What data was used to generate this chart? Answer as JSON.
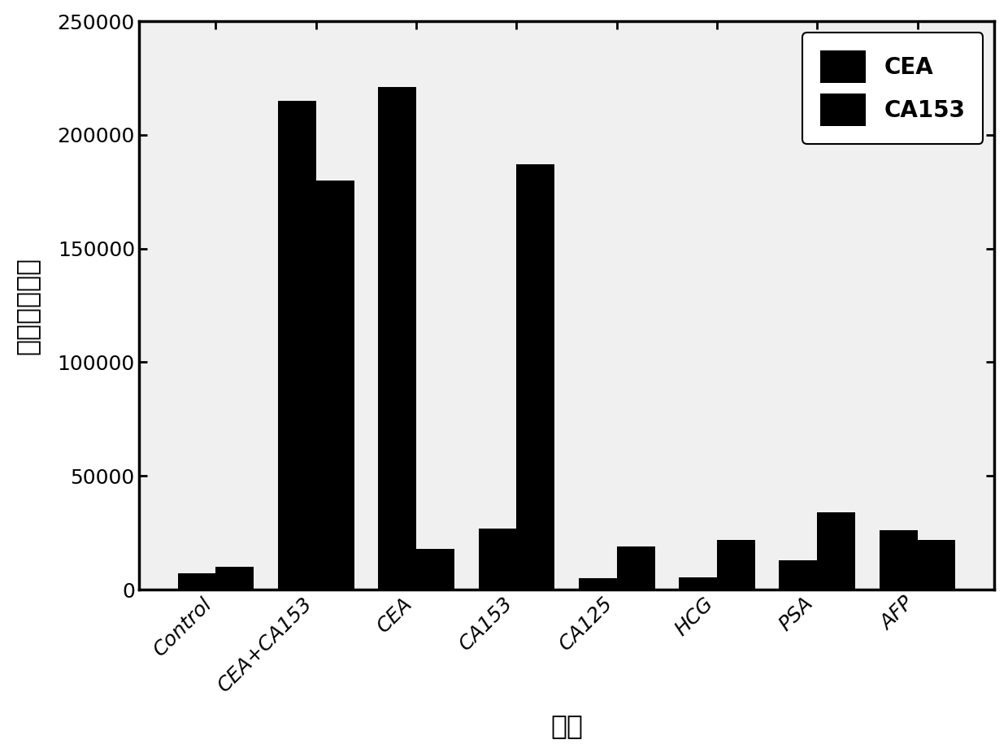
{
  "categories": [
    "Control",
    "CEA+CA153",
    "CEA",
    "CA153",
    "CA125",
    "HCG",
    "PSA",
    "AFP"
  ],
  "cea_values": [
    7000,
    215000,
    221000,
    27000,
    5000,
    5500,
    13000,
    26000
  ],
  "ca153_values": [
    10000,
    180000,
    18000,
    187000,
    19000,
    22000,
    34000,
    22000
  ],
  "bar_color": "#000000",
  "bar_width": 0.38,
  "ylabel": "荧光强度变化",
  "xlabel": "抗原",
  "legend_labels": [
    "CEA",
    "CA153"
  ],
  "ylim": [
    0,
    250000
  ],
  "yticks": [
    0,
    50000,
    100000,
    150000,
    200000,
    250000
  ],
  "axis_fontsize": 22,
  "tick_fontsize": 18,
  "legend_fontsize": 20,
  "xlabel_fontsize": 24,
  "ylabel_fontsize": 24,
  "plot_bg_color": "#f0f0f0",
  "fig_bg_color": "#ffffff",
  "spine_linewidth": 2.5
}
